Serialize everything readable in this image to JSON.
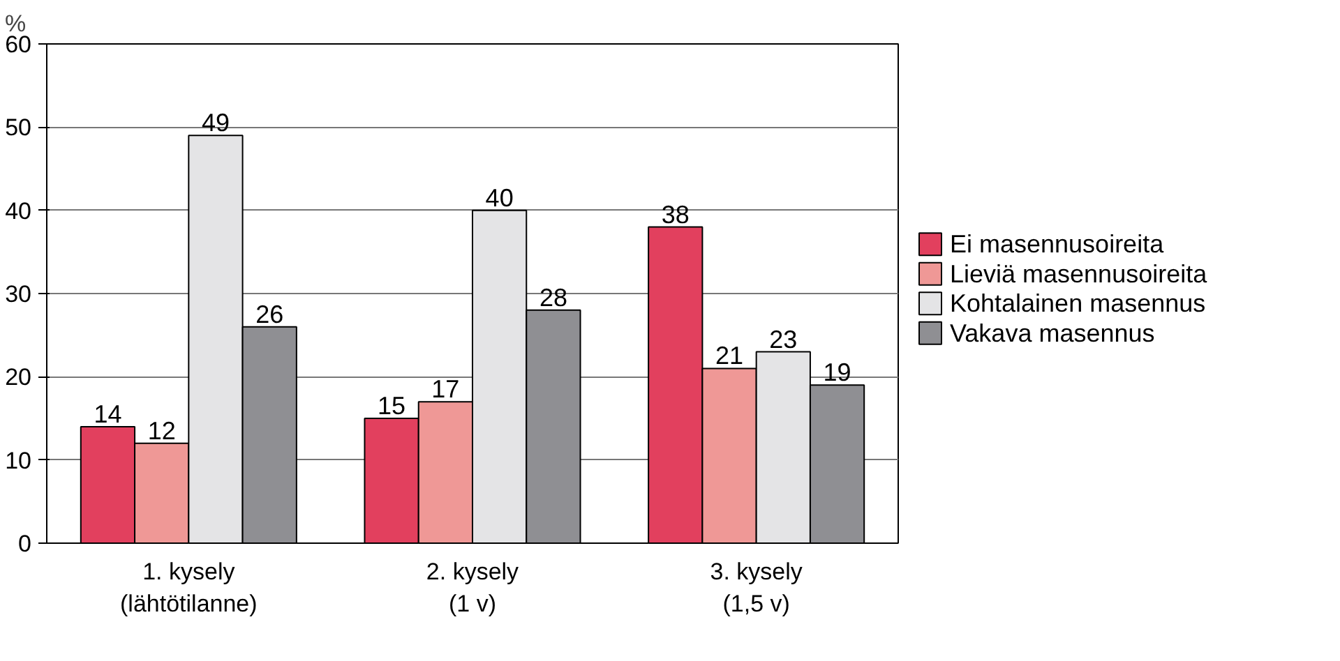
{
  "chart_data": {
    "type": "bar",
    "ylabel": "%",
    "categories": [
      "1. kysely\n(lähtötilanne)",
      "2. kysely\n(1 v)",
      "3. kysely\n(1,5 v)"
    ],
    "series": [
      {
        "name": "Ei masennusoireita",
        "color": "#e2405e",
        "values": [
          14,
          15,
          38
        ]
      },
      {
        "name": "Lieviä masennusoireita",
        "color": "#ef9896",
        "values": [
          12,
          17,
          21
        ]
      },
      {
        "name": "Kohtalainen masennus",
        "color": "#e4e4e6",
        "values": [
          49,
          40,
          23
        ]
      },
      {
        "name": "Vakava masennus",
        "color": "#8f8f93",
        "values": [
          26,
          28,
          19
        ]
      }
    ],
    "ylim": [
      0,
      60
    ],
    "yticks": [
      0,
      10,
      20,
      30,
      40,
      50,
      60
    ],
    "grid": "y",
    "legend": "right",
    "data_labels": true
  }
}
